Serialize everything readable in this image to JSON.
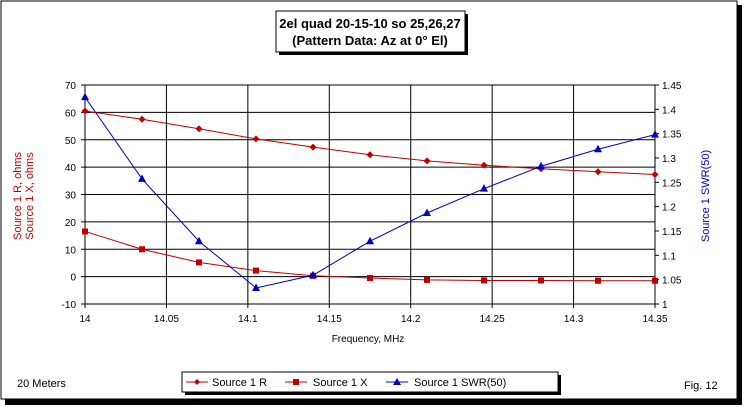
{
  "figure": {
    "title_line1": "2el quad 20-15-10 so 25,26,27",
    "title_line2": "(Pattern Data: Az at 0° El)",
    "band_label": "20 Meters",
    "fig_label": "Fig. 12"
  },
  "colors": {
    "r_series": "#c00000",
    "x_series": "#c00000",
    "swr_series": "#0000c0",
    "left_axis_label": "#c00000",
    "right_axis_label": "#0000c0",
    "grid": "#000000"
  },
  "chart_data": {
    "type": "line",
    "title": "2el quad 20-15-10 so 25,26,27 (Pattern Data: Az at 0° El)",
    "xlabel": "Frequency, MHz",
    "ylabel_left": [
      "Source 1 R,  ohms",
      "Source 1 X,  ohms"
    ],
    "ylabel_right": "Source 1 SWR(50)",
    "xlim": [
      14,
      14.35
    ],
    "ylim_left": [
      -10,
      70
    ],
    "ylim_right": [
      1.0,
      1.45
    ],
    "x_ticks": [
      "14",
      "14.05",
      "14.1",
      "14.15",
      "14.2",
      "14.25",
      "14.3",
      "14.35"
    ],
    "y_left_ticks": [
      "-10",
      "0",
      "10",
      "20",
      "30",
      "40",
      "50",
      "60",
      "70"
    ],
    "y_right_ticks": [
      "1",
      "1.05",
      "1.1",
      "1.15",
      "1.2",
      "1.25",
      "1.3",
      "1.35",
      "1.4",
      "1.45"
    ],
    "grid": true,
    "legend_position": "bottom",
    "x": [
      14.0,
      14.035,
      14.07,
      14.105,
      14.14,
      14.175,
      14.21,
      14.245,
      14.28,
      14.315,
      14.35
    ],
    "series": [
      {
        "name": "Source 1 R",
        "axis": "left",
        "marker": "diamond",
        "values": [
          60.5,
          57.5,
          54,
          50.3,
          47.3,
          44.5,
          42.3,
          40.7,
          39.4,
          38.3,
          37.3
        ]
      },
      {
        "name": "Source 1 X",
        "axis": "left",
        "marker": "square",
        "values": [
          16.5,
          10,
          5.2,
          2.2,
          0.3,
          -0.5,
          -1.2,
          -1.4,
          -1.4,
          -1.5,
          -1.5
        ]
      },
      {
        "name": "Source 1 SWR(50)",
        "axis": "right",
        "marker": "triangle",
        "values": [
          1.425,
          1.257,
          1.129,
          1.033,
          1.059,
          1.129,
          1.187,
          1.237,
          1.283,
          1.318,
          1.348
        ]
      }
    ]
  }
}
